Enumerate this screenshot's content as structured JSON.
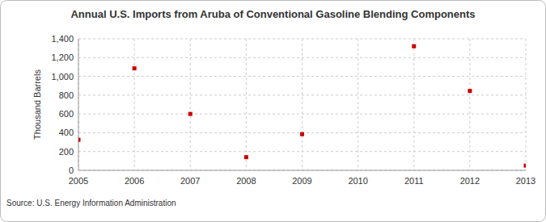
{
  "chart_data": {
    "type": "scatter",
    "title": "Annual U.S. Imports from Aruba of Conventional Gasoline Blending Components",
    "y_label": "Thousand Barrels",
    "source": "Source: U.S. Energy Information Administration",
    "x": [
      2005,
      2006,
      2007,
      2008,
      2009,
      2011,
      2012,
      2013
    ],
    "values": [
      325,
      1085,
      600,
      140,
      385,
      1320,
      845,
      50
    ],
    "color": "#cc0000",
    "marker": "square",
    "xlim": [
      2005,
      2013
    ],
    "xticks": [
      2005,
      2006,
      2007,
      2008,
      2009,
      2010,
      2011,
      2012,
      2013
    ],
    "ylim": [
      0,
      1400
    ],
    "yticks": [
      0,
      200,
      400,
      600,
      800,
      {
        "value": 1000,
        "label": "1,000"
      },
      {
        "value": 1200,
        "label": "1,200"
      },
      {
        "value": 1400,
        "label": "1,400"
      }
    ],
    "grid": true
  }
}
